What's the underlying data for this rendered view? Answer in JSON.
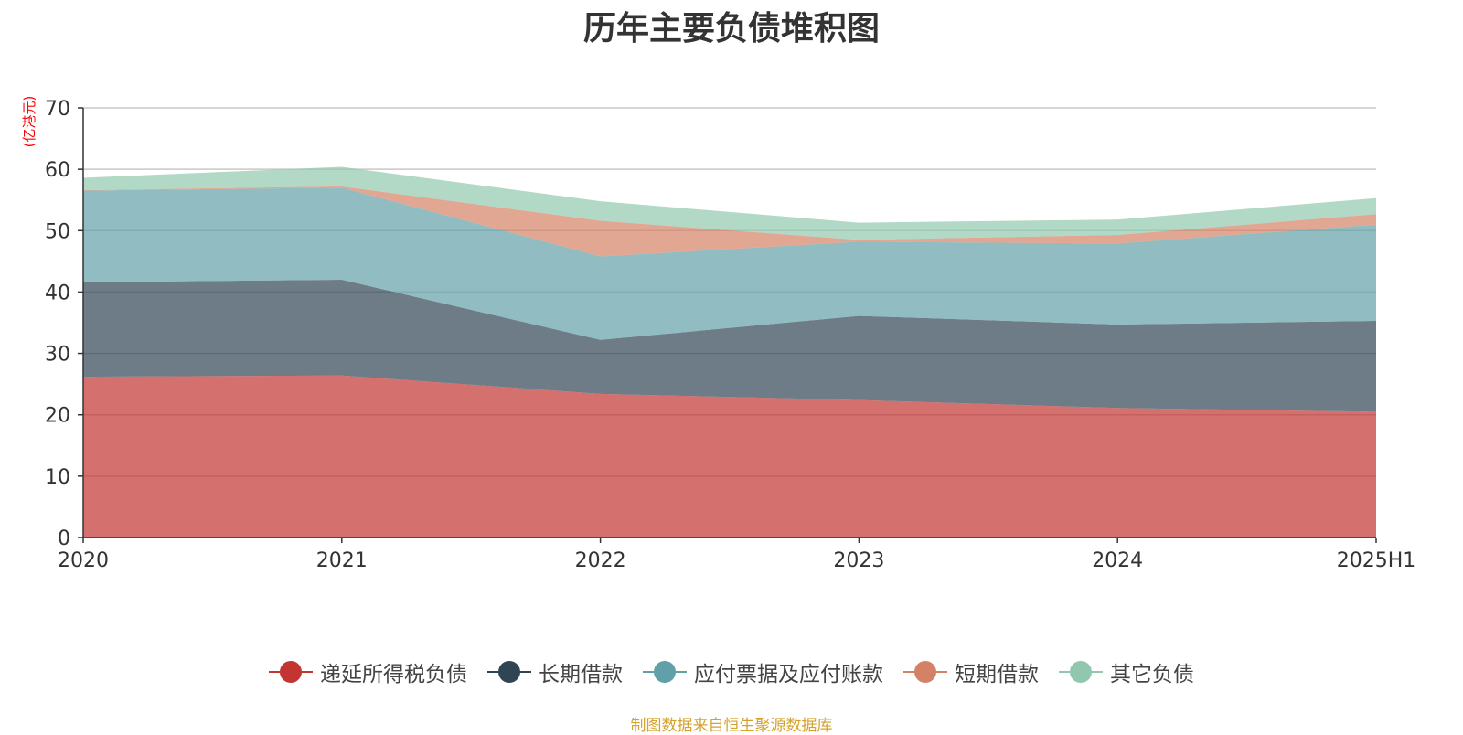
{
  "chart_data": {
    "type": "area",
    "stacked": true,
    "title": "历年主要负债堆积图",
    "ylabel": "(亿港元)",
    "xlabel": "",
    "categories": [
      "2020",
      "2021",
      "2022",
      "2023",
      "2024",
      "2025H1"
    ],
    "ylim": [
      0,
      70
    ],
    "yticks": [
      0,
      10,
      20,
      30,
      40,
      50,
      60,
      70
    ],
    "grid": true,
    "legend_position": "bottom",
    "series": [
      {
        "name": "递延所得税负债",
        "color": "#c23531",
        "values": [
          26.2,
          26.4,
          23.4,
          22.4,
          21.1,
          20.5
        ]
      },
      {
        "name": "长期借款",
        "color": "#2f4554",
        "values": [
          15.4,
          15.6,
          8.8,
          13.7,
          13.6,
          14.8
        ]
      },
      {
        "name": "应付票据及应付账款",
        "color": "#61a0a8",
        "values": [
          14.9,
          15.0,
          13.6,
          12.1,
          13.2,
          15.7
        ]
      },
      {
        "name": "短期借款",
        "color": "#d48265",
        "values": [
          0.1,
          0.2,
          5.8,
          0.3,
          1.4,
          1.7
        ]
      },
      {
        "name": "其它负债",
        "color": "#91c7ae",
        "values": [
          2.0,
          3.2,
          3.2,
          2.8,
          2.5,
          2.6
        ]
      }
    ]
  },
  "footer": {
    "source": "制图数据来自恒生聚源数据库"
  }
}
